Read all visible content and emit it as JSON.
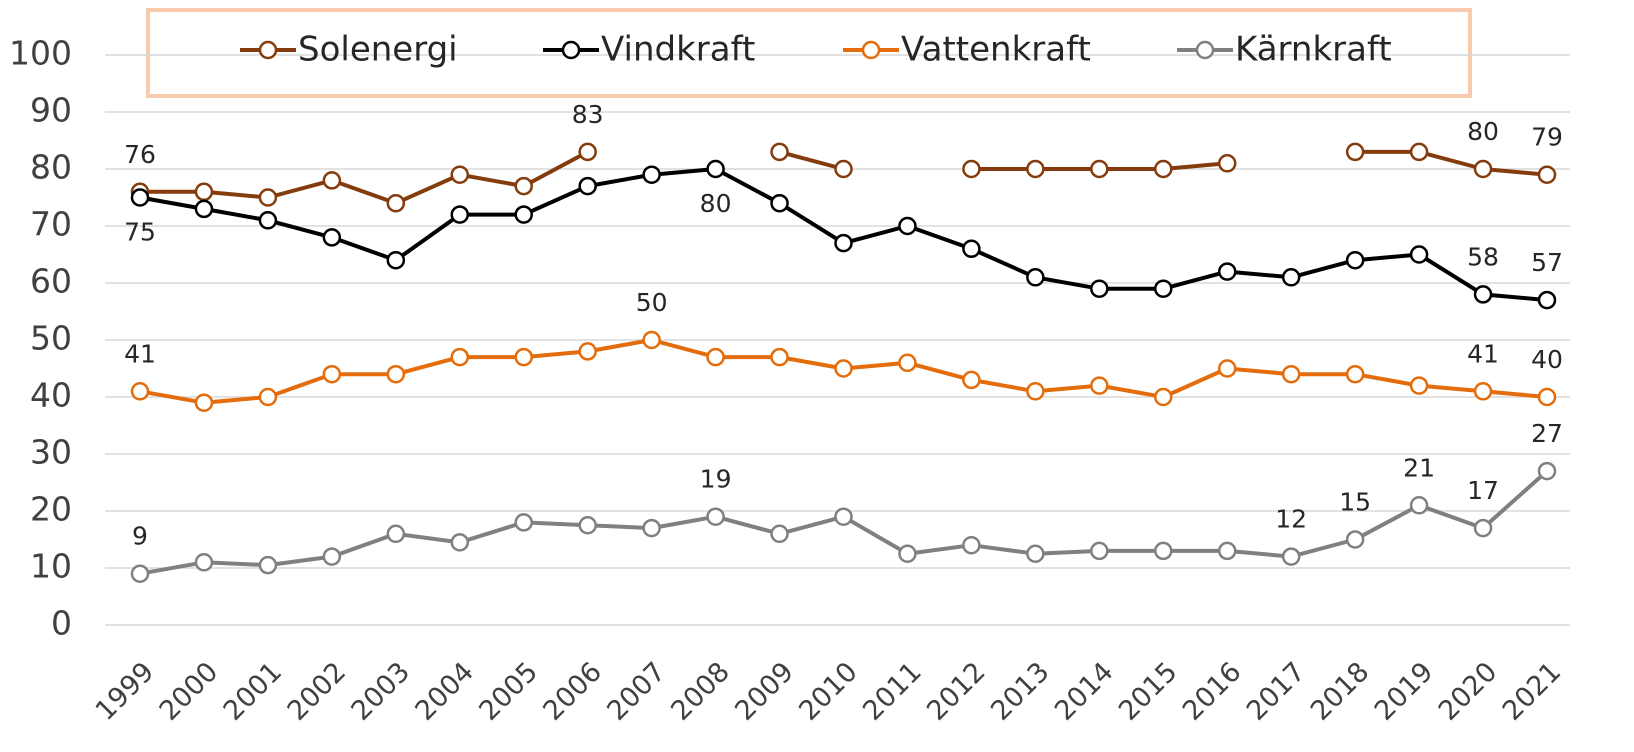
{
  "chart_data": {
    "type": "line",
    "categories": [
      "1999",
      "2000",
      "2001",
      "2002",
      "2003",
      "2004",
      "2005",
      "2006",
      "2007",
      "2008",
      "2009",
      "2010",
      "2011",
      "2012",
      "2013",
      "2014",
      "2015",
      "2016",
      "2017",
      "2018",
      "2019",
      "2020",
      "2021"
    ],
    "ylim": [
      0,
      100
    ],
    "yticks": [
      0,
      10,
      20,
      30,
      40,
      50,
      60,
      70,
      80,
      90,
      100
    ],
    "grid": true,
    "legend": "top",
    "series": [
      {
        "name": "Solenergi",
        "color": "#843c0c",
        "values": [
          76,
          76,
          75,
          78,
          74,
          79,
          77,
          83,
          null,
          null,
          83,
          80,
          null,
          80,
          80,
          80,
          80,
          81,
          null,
          83,
          83,
          80,
          79
        ],
        "value_labels": [
          "76",
          null,
          null,
          null,
          null,
          null,
          null,
          "83",
          null,
          null,
          null,
          null,
          null,
          null,
          null,
          null,
          null,
          null,
          null,
          null,
          null,
          "80",
          "79"
        ]
      },
      {
        "name": "Vindkraft",
        "color": "#000000",
        "values": [
          75,
          73,
          71,
          68,
          64,
          72,
          72,
          77,
          79,
          80,
          74,
          67,
          70,
          66,
          61,
          59,
          59,
          62,
          61,
          64,
          65,
          58,
          57
        ],
        "value_labels": [
          "75",
          null,
          null,
          null,
          null,
          null,
          null,
          null,
          null,
          "80",
          null,
          null,
          null,
          null,
          null,
          null,
          null,
          null,
          null,
          null,
          null,
          "58",
          "57"
        ]
      },
      {
        "name": "Vattenkraft",
        "color": "#e46c0a",
        "values": [
          41,
          39,
          40,
          44,
          44,
          47,
          47,
          48,
          50,
          47,
          47,
          45,
          46,
          43,
          41,
          42,
          40,
          45,
          44,
          44,
          42,
          41,
          40
        ],
        "value_labels": [
          "41",
          null,
          null,
          null,
          null,
          null,
          null,
          null,
          "50",
          null,
          null,
          null,
          null,
          null,
          null,
          null,
          null,
          null,
          null,
          null,
          null,
          "41",
          "40"
        ]
      },
      {
        "name": "Kärnkraft",
        "color": "#808080",
        "values": [
          9,
          11,
          10.5,
          12,
          16,
          14.5,
          18,
          17.5,
          17,
          19,
          16,
          19,
          12.5,
          14,
          12.5,
          13,
          13,
          13,
          12,
          15,
          21,
          17,
          27
        ],
        "value_labels": [
          "9",
          null,
          null,
          null,
          null,
          null,
          null,
          null,
          null,
          "19",
          null,
          null,
          null,
          null,
          null,
          null,
          null,
          null,
          "12",
          "15",
          "21",
          "17",
          "27"
        ]
      }
    ]
  }
}
